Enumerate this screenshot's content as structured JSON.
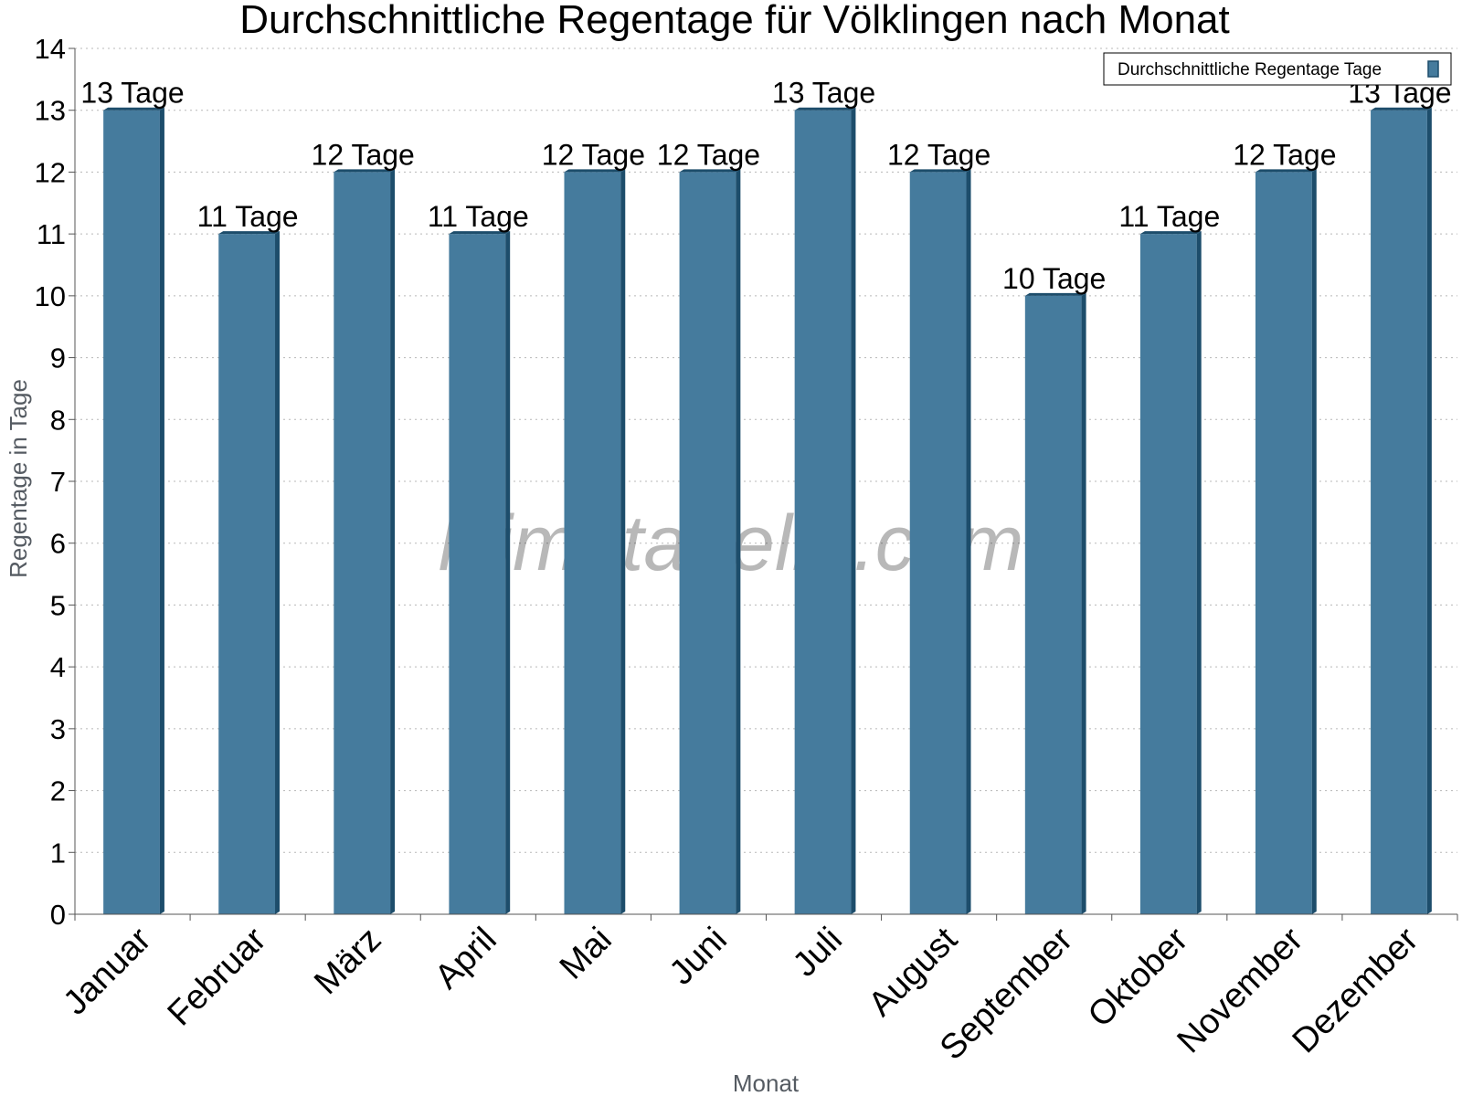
{
  "chart_data": {
    "type": "bar",
    "title": "Durchschnittliche Regentage für Völklingen nach Monat",
    "xlabel": "Monat",
    "ylabel": "Regentage in Tage",
    "ylim": [
      0,
      14
    ],
    "yticks": [
      "0",
      "1",
      "2",
      "3",
      "4",
      "5",
      "6",
      "7",
      "8",
      "9",
      "10",
      "11",
      "12",
      "13",
      "14"
    ],
    "grid": true,
    "legend_position": "top-right",
    "categories": [
      "Januar",
      "Februar",
      "März",
      "April",
      "Mai",
      "Juni",
      "Juli",
      "August",
      "September",
      "Oktober",
      "November",
      "Dezember"
    ],
    "series": [
      {
        "name": "Durchschnittliche Regentage Tage",
        "values": [
          13,
          11,
          12,
          11,
          12,
          12,
          13,
          12,
          10,
          11,
          12,
          13
        ],
        "labels": [
          "13 Tage",
          "11 Tage",
          "12 Tage",
          "11 Tage",
          "12 Tage",
          "12 Tage",
          "13 Tage",
          "12 Tage",
          "10 Tage",
          "11 Tage",
          "12 Tage",
          "13 Tage"
        ],
        "color": "#457b9d",
        "side_color": "#1d4d6b"
      }
    ],
    "watermark": "klimatabelle.com"
  }
}
